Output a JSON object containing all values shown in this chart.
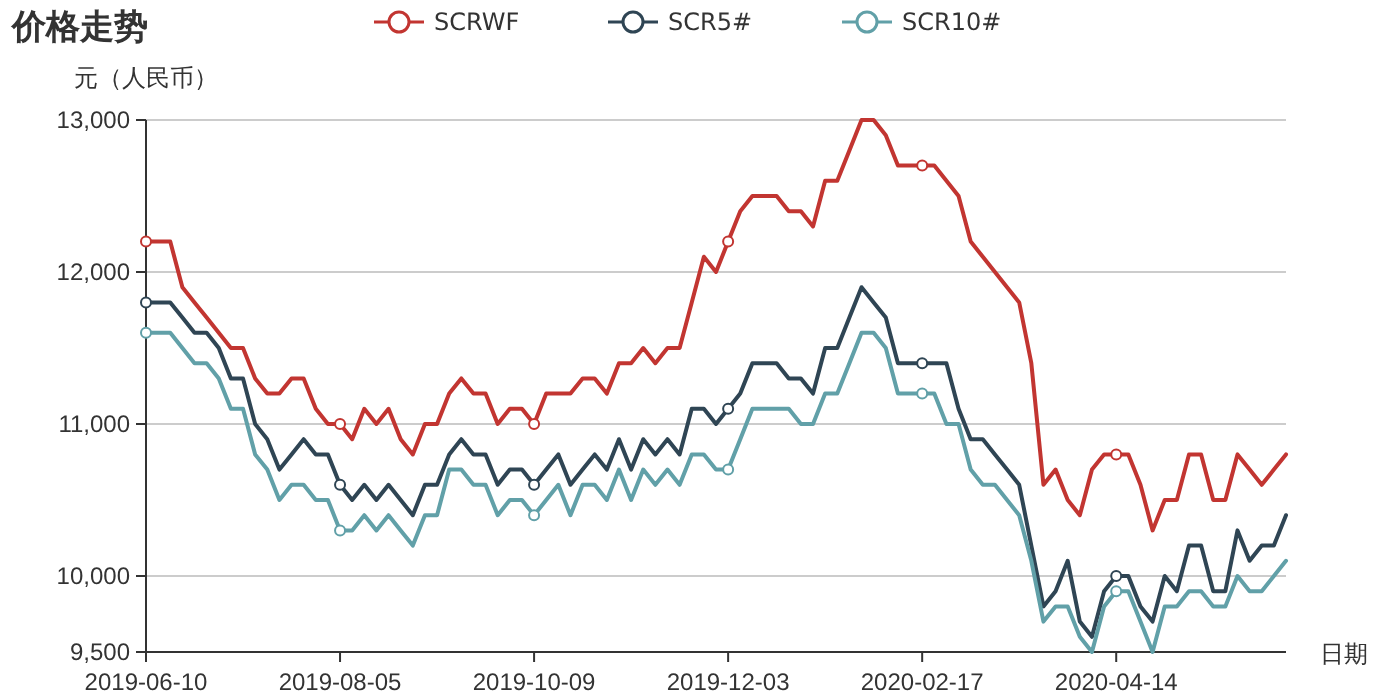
{
  "chart_data": {
    "type": "line",
    "title": "价格走势",
    "ylabel": "元（人民币）",
    "xlabel": "日期",
    "categories": [
      "2019-06-10",
      null,
      null,
      null,
      null,
      null,
      null,
      null,
      null,
      null,
      null,
      null,
      null,
      null,
      null,
      null,
      "2019-08-05",
      null,
      null,
      null,
      null,
      null,
      null,
      null,
      null,
      null,
      null,
      null,
      null,
      null,
      null,
      null,
      "2019-10-09",
      null,
      null,
      null,
      null,
      null,
      null,
      null,
      null,
      null,
      null,
      null,
      null,
      null,
      null,
      null,
      "2019-12-03",
      null,
      null,
      null,
      null,
      null,
      null,
      null,
      null,
      null,
      null,
      null,
      null,
      null,
      null,
      null,
      "2020-02-17",
      null,
      null,
      null,
      null,
      null,
      null,
      null,
      null,
      null,
      null,
      null,
      null,
      null,
      null,
      null,
      "2020-04-14",
      null,
      null,
      null,
      null,
      null,
      null,
      null,
      null,
      null,
      null,
      null,
      null,
      null,
      null
    ],
    "series": [
      {
        "name": "SCRWF",
        "color": "#c23531",
        "values": [
          12200,
          12200,
          12200,
          11900,
          11800,
          11700,
          11600,
          11500,
          11500,
          11300,
          11200,
          11200,
          11300,
          11300,
          11100,
          11000,
          11000,
          10900,
          11100,
          11000,
          11100,
          10900,
          10800,
          11000,
          11000,
          11200,
          11300,
          11200,
          11200,
          11000,
          11100,
          11100,
          11000,
          11200,
          11200,
          11200,
          11300,
          11300,
          11200,
          11400,
          11400,
          11500,
          11400,
          11500,
          11500,
          11800,
          12100,
          12000,
          12200,
          12400,
          12500,
          12500,
          12500,
          12400,
          12400,
          12300,
          12600,
          12600,
          12800,
          13000,
          13000,
          12900,
          12700,
          12700,
          12700,
          12700,
          12600,
          12500,
          12200,
          12100,
          12000,
          11900,
          11800,
          11400,
          10600,
          10700,
          10500,
          10400,
          10700,
          10800,
          10800,
          10800,
          10600,
          10300,
          10500,
          10500,
          10800,
          10800,
          10500,
          10500,
          10800,
          10700,
          10600,
          10700,
          10800
        ]
      },
      {
        "name": "SCR5#",
        "color": "#2f4554",
        "values": [
          11800,
          11800,
          11800,
          11700,
          11600,
          11600,
          11500,
          11300,
          11300,
          11000,
          10900,
          10700,
          10800,
          10900,
          10800,
          10800,
          10600,
          10500,
          10600,
          10500,
          10600,
          10500,
          10400,
          10600,
          10600,
          10800,
          10900,
          10800,
          10800,
          10600,
          10700,
          10700,
          10600,
          10700,
          10800,
          10600,
          10700,
          10800,
          10700,
          10900,
          10700,
          10900,
          10800,
          10900,
          10800,
          11100,
          11100,
          11000,
          11100,
          11200,
          11400,
          11400,
          11400,
          11300,
          11300,
          11200,
          11500,
          11500,
          11700,
          11900,
          11800,
          11700,
          11400,
          11400,
          11400,
          11400,
          11400,
          11100,
          10900,
          10900,
          10800,
          10700,
          10600,
          10200,
          9800,
          9900,
          10100,
          9700,
          9600,
          9900,
          10000,
          10000,
          9800,
          9700,
          10000,
          9900,
          10200,
          10200,
          9900,
          9900,
          10300,
          10100,
          10200,
          10200,
          10400
        ]
      },
      {
        "name": "SCR10#",
        "color": "#61a0a8",
        "values": [
          11600,
          11600,
          11600,
          11500,
          11400,
          11400,
          11300,
          11100,
          11100,
          10800,
          10700,
          10500,
          10600,
          10600,
          10500,
          10500,
          10300,
          10300,
          10400,
          10300,
          10400,
          10300,
          10200,
          10400,
          10400,
          10700,
          10700,
          10600,
          10600,
          10400,
          10500,
          10500,
          10400,
          10500,
          10600,
          10400,
          10600,
          10600,
          10500,
          10700,
          10500,
          10700,
          10600,
          10700,
          10600,
          10800,
          10800,
          10700,
          10700,
          10900,
          11100,
          11100,
          11100,
          11100,
          11000,
          11000,
          11200,
          11200,
          11400,
          11600,
          11600,
          11500,
          11200,
          11200,
          11200,
          11200,
          11000,
          11000,
          10700,
          10600,
          10600,
          10500,
          10400,
          10100,
          9700,
          9800,
          9800,
          9600,
          9500,
          9800,
          9900,
          9900,
          9700,
          9500,
          9800,
          9800,
          9900,
          9900,
          9800,
          9800,
          10000,
          9900,
          9900,
          10000,
          10100
        ]
      }
    ],
    "ylim": [
      9500,
      13000
    ],
    "yticks": [
      {
        "value": 9500,
        "label": "9,500"
      },
      {
        "value": 10000,
        "label": "10,000"
      },
      {
        "value": 11000,
        "label": "11,000"
      },
      {
        "value": 12000,
        "label": "12,000"
      },
      {
        "value": 13000,
        "label": "13,000"
      }
    ],
    "grid": "y",
    "legend": "top",
    "line_style": "solid"
  }
}
